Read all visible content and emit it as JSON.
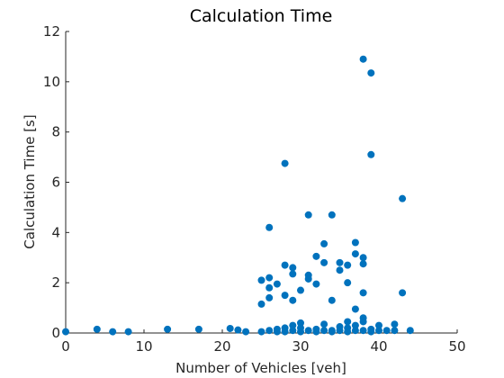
{
  "chart_data": {
    "type": "scatter",
    "title": "Calculation Time",
    "xlabel": "Number of Vehicles [veh]",
    "ylabel": "Calculation Time [s]",
    "xlim": [
      0,
      50
    ],
    "ylim": [
      0,
      12
    ],
    "xticks": [
      0,
      10,
      20,
      30,
      40,
      50
    ],
    "yticks": [
      0,
      2,
      4,
      6,
      8,
      10,
      12
    ],
    "grid": false,
    "box": false,
    "marker_color": "#0072BD",
    "series": [
      {
        "points": [
          [
            0,
            0.05
          ],
          [
            4,
            0.15
          ],
          [
            6,
            0.05
          ],
          [
            8,
            0.05
          ],
          [
            13,
            0.15
          ],
          [
            17,
            0.15
          ],
          [
            21,
            0.18
          ],
          [
            22,
            0.12
          ],
          [
            23,
            0.05
          ],
          [
            25,
            2.1
          ],
          [
            25,
            1.15
          ],
          [
            25,
            0.05
          ],
          [
            26,
            4.2
          ],
          [
            26,
            2.2
          ],
          [
            26,
            1.8
          ],
          [
            26,
            1.4
          ],
          [
            26,
            0.1
          ],
          [
            27,
            1.95
          ],
          [
            27,
            0.05
          ],
          [
            27,
            0.15
          ],
          [
            28,
            6.75
          ],
          [
            28,
            2.7
          ],
          [
            28,
            1.5
          ],
          [
            28,
            0.05
          ],
          [
            28,
            0.2
          ],
          [
            29,
            2.6
          ],
          [
            29,
            2.35
          ],
          [
            29,
            1.3
          ],
          [
            29,
            0.1
          ],
          [
            29,
            0.3
          ],
          [
            30,
            1.7
          ],
          [
            30,
            0.4
          ],
          [
            30,
            0.2
          ],
          [
            30,
            0.05
          ],
          [
            31,
            4.7
          ],
          [
            31,
            2.3
          ],
          [
            31,
            2.15
          ],
          [
            31,
            0.1
          ],
          [
            32,
            3.05
          ],
          [
            32,
            1.95
          ],
          [
            32,
            0.05
          ],
          [
            32,
            0.15
          ],
          [
            33,
            3.55
          ],
          [
            33,
            2.8
          ],
          [
            33,
            0.35
          ],
          [
            33,
            0.1
          ],
          [
            34,
            4.7
          ],
          [
            34,
            1.3
          ],
          [
            34,
            0.1
          ],
          [
            34,
            0.05
          ],
          [
            35,
            2.8
          ],
          [
            35,
            2.5
          ],
          [
            35,
            0.25
          ],
          [
            35,
            0.1
          ],
          [
            36,
            2.7
          ],
          [
            36,
            2.0
          ],
          [
            36,
            0.45
          ],
          [
            36,
            0.2
          ],
          [
            36,
            0.05
          ],
          [
            37,
            3.6
          ],
          [
            37,
            3.15
          ],
          [
            37,
            0.95
          ],
          [
            37,
            0.3
          ],
          [
            37,
            0.1
          ],
          [
            38,
            10.9
          ],
          [
            38,
            3.0
          ],
          [
            38,
            2.75
          ],
          [
            38,
            1.6
          ],
          [
            38,
            0.6
          ],
          [
            38,
            0.45
          ],
          [
            38,
            0.1
          ],
          [
            39,
            10.35
          ],
          [
            39,
            7.1
          ],
          [
            39,
            0.15
          ],
          [
            39,
            0.05
          ],
          [
            40,
            0.3
          ],
          [
            40,
            0.1
          ],
          [
            41,
            0.1
          ],
          [
            42,
            0.35
          ],
          [
            42,
            0.1
          ],
          [
            43,
            5.35
          ],
          [
            43,
            1.6
          ],
          [
            44,
            0.1
          ]
        ]
      }
    ]
  }
}
